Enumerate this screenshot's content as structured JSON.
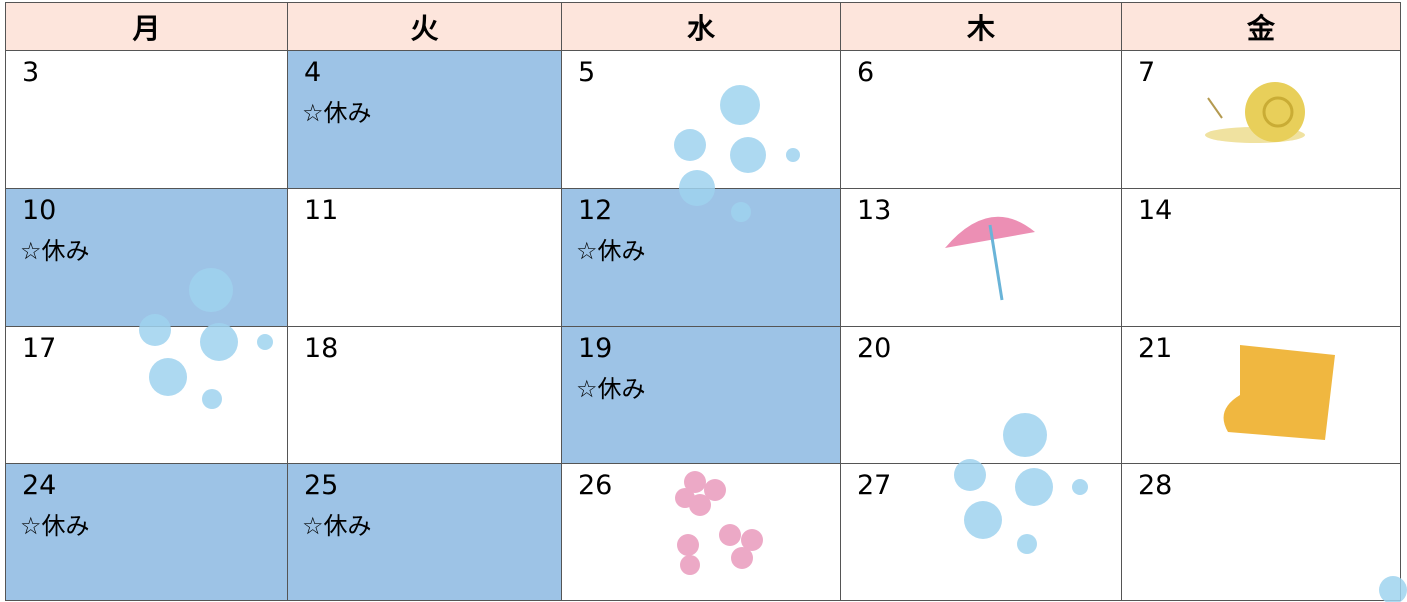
{
  "header": [
    "月",
    "火",
    "水",
    "木",
    "金"
  ],
  "rows": [
    [
      {
        "day": 3
      },
      {
        "day": 4,
        "note": "☆休み"
      },
      {
        "day": 5
      },
      {
        "day": 6
      },
      {
        "day": 7
      }
    ],
    [
      {
        "day": 10,
        "note": "☆休み"
      },
      {
        "day": 11
      },
      {
        "day": 12,
        "note": "☆休み"
      },
      {
        "day": 13
      },
      {
        "day": 14
      }
    ],
    [
      {
        "day": 17
      },
      {
        "day": 18
      },
      {
        "day": 19,
        "note": "☆休み"
      },
      {
        "day": 20
      },
      {
        "day": 21
      }
    ],
    [
      {
        "day": 24,
        "note": "☆休み"
      },
      {
        "day": 25,
        "note": "☆休み"
      },
      {
        "day": 26
      },
      {
        "day": 27
      },
      {
        "day": 28
      }
    ]
  ]
}
